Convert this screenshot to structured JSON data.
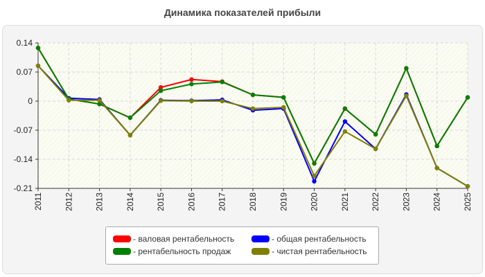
{
  "chart_data": {
    "type": "line",
    "title": "Динамика показателей прибыли",
    "x": [
      "2011",
      "2012",
      "2013",
      "2014",
      "2015",
      "2016",
      "2017",
      "2018",
      "2019",
      "2020",
      "2021",
      "2022",
      "2023",
      "2024",
      "2025"
    ],
    "ylim": [
      -0.21,
      0.14
    ],
    "yticks": [
      "0.14",
      "0.07",
      "0",
      "-0.07",
      "-0.14",
      "-0.21"
    ],
    "grid": true,
    "legend_position": "bottom",
    "series": [
      {
        "name": "валовая рентабельность",
        "color": "#ff0000",
        "values": [
          0.128,
          0.005,
          -0.007,
          -0.04,
          0.033,
          0.052,
          0.047,
          0.015,
          0.009,
          -0.15,
          -0.018,
          -0.08,
          0.079,
          -0.108,
          0.009
        ]
      },
      {
        "name": "общая рентабельность",
        "color": "#0000ff",
        "values": [
          0.085,
          0.007,
          0.004,
          -0.082,
          0.002,
          0.001,
          0.003,
          -0.022,
          -0.018,
          -0.193,
          -0.049,
          -0.115,
          0.016,
          -0.161,
          -0.205
        ]
      },
      {
        "name": "рентабельность продаж",
        "color": "#008000",
        "values": [
          0.128,
          0.005,
          -0.007,
          -0.04,
          0.025,
          0.041,
          0.046,
          0.015,
          0.009,
          -0.15,
          -0.018,
          -0.08,
          0.079,
          -0.108,
          0.009
        ]
      },
      {
        "name": "чистая рентабельность",
        "color": "#808000",
        "values": [
          0.085,
          0.002,
          0.002,
          -0.082,
          0.001,
          0.0,
          0.0,
          -0.018,
          -0.015,
          -0.18,
          -0.073,
          -0.115,
          0.013,
          -0.161,
          -0.205
        ]
      }
    ]
  }
}
